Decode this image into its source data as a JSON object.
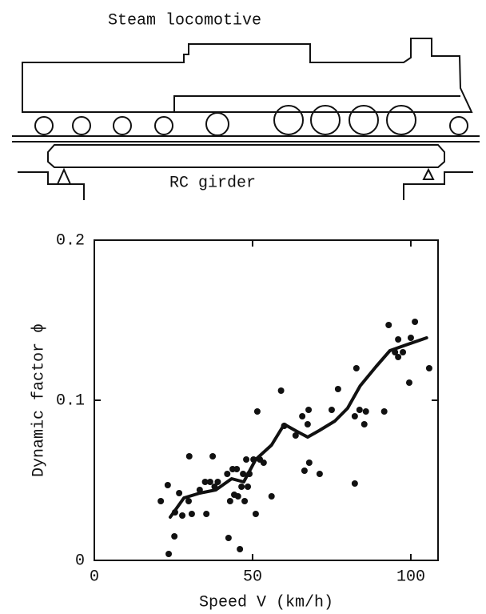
{
  "diagram": {
    "locomotive_label": "Steam locomotive",
    "girder_label": "RC girder"
  },
  "chart_data": {
    "type": "scatter",
    "x_label": "Speed V (km/h)",
    "y_label": "Dynamic factor ϕ",
    "xlim": [
      0,
      108.6
    ],
    "ylim": [
      0,
      0.2
    ],
    "xticks": [
      0,
      50,
      100
    ],
    "yticks": [
      0,
      0.1,
      0.2
    ],
    "color": "#111111",
    "x": [
      21.0,
      23.2,
      23.5,
      25.3,
      25.5,
      26.8,
      27.8,
      30.0,
      29.8,
      30.8,
      33.3,
      35.0,
      35.4,
      36.6,
      37.4,
      38.0,
      39.0,
      42.0,
      42.4,
      42.9,
      43.7,
      44.2,
      45.0,
      45.4,
      46.0,
      46.5,
      47.0,
      47.5,
      48.0,
      48.5,
      49.0,
      50.3,
      51.0,
      51.5,
      52.3,
      53.5,
      56.0,
      59.0,
      60.0,
      63.6,
      65.7,
      66.4,
      67.4,
      67.7,
      67.9,
      71.2,
      75.0,
      77.0,
      82.3,
      82.3,
      82.8,
      83.8,
      85.3,
      85.8,
      91.6,
      93.0,
      95.0,
      96.0,
      96.0,
      97.5,
      99.5,
      100.0,
      101.3,
      105.8
    ],
    "values": [
      0.037,
      0.047,
      0.004,
      0.015,
      0.03,
      0.042,
      0.028,
      0.065,
      0.037,
      0.029,
      0.044,
      0.049,
      0.029,
      0.049,
      0.065,
      0.046,
      0.049,
      0.054,
      0.014,
      0.037,
      0.057,
      0.041,
      0.057,
      0.04,
      0.007,
      0.046,
      0.054,
      0.037,
      0.063,
      0.046,
      0.054,
      0.063,
      0.029,
      0.093,
      0.063,
      0.061,
      0.04,
      0.106,
      0.084,
      0.078,
      0.09,
      0.056,
      0.085,
      0.094,
      0.061,
      0.054,
      0.094,
      0.107,
      0.048,
      0.09,
      0.12,
      0.094,
      0.085,
      0.093,
      0.093,
      0.147,
      0.13,
      0.138,
      0.127,
      0.13,
      0.111,
      0.139,
      0.149,
      0.12
    ],
    "trend": {
      "x": [
        24,
        28.3,
        33.3,
        38.4,
        43.4,
        47.2,
        51,
        56,
        60,
        63.6,
        67.4,
        71,
        76,
        80,
        84,
        89,
        93.4,
        97.7,
        105
      ],
      "values": [
        0.027,
        0.039,
        0.042,
        0.044,
        0.051,
        0.049,
        0.063,
        0.072,
        0.085,
        0.081,
        0.077,
        0.081,
        0.087,
        0.095,
        0.109,
        0.121,
        0.131,
        0.134,
        0.139
      ]
    }
  }
}
